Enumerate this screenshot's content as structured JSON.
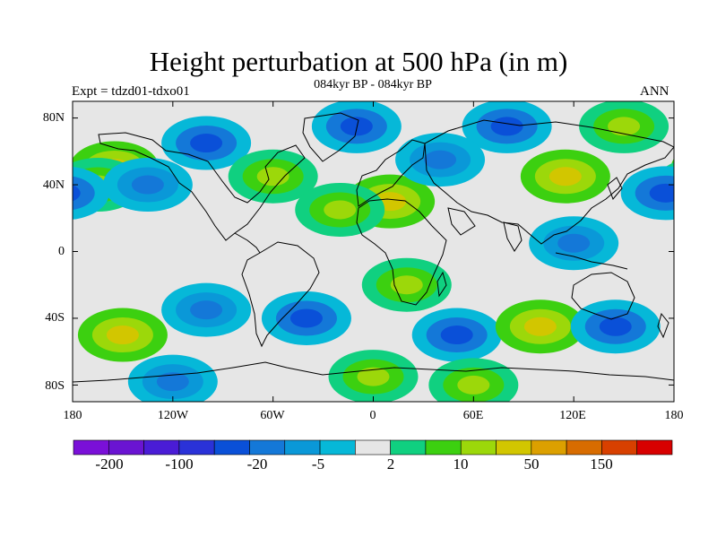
{
  "title": "Height perturbation at 500 hPa (in m)",
  "subtitle": "084kyr BP - 084kyr BP",
  "left_label": "Expt = tdzd01-tdxo01",
  "right_label": "ANN",
  "chart_data": {
    "type": "heatmap",
    "projection": "cylindrical-equidistant",
    "xlim": [
      -180,
      180
    ],
    "ylim": [
      -90,
      90
    ],
    "x_ticks": [
      "180",
      "120W",
      "60W",
      "0",
      "60E",
      "120E",
      "180"
    ],
    "y_ticks": [
      "80N",
      "40N",
      "0",
      "40S",
      "80S"
    ],
    "colorbar": {
      "orientation": "horizontal",
      "tick_labels": [
        "-200",
        "-100",
        "-20",
        "-5",
        "2",
        "10",
        "50",
        "150"
      ],
      "colors": [
        "#7a10d8",
        "#6a14d2",
        "#4a1cd6",
        "#2a32d8",
        "#0a50d8",
        "#1478d8",
        "#0a98d8",
        "#06b8d8",
        "#e6e6e6",
        "#10d080",
        "#3cd010",
        "#9cd80a",
        "#d2c600",
        "#dca000",
        "#d86c00",
        "#d84000",
        "#d80000"
      ]
    },
    "anomalies": [
      {
        "lon": -155,
        "lat": 50,
        "value": 50
      },
      {
        "lon": -165,
        "lat": 40,
        "value": 10
      },
      {
        "lon": -100,
        "lat": 65,
        "value": -20
      },
      {
        "lon": -60,
        "lat": 45,
        "value": 10
      },
      {
        "lon": -10,
        "lat": 75,
        "value": -20
      },
      {
        "lon": 10,
        "lat": 30,
        "value": 50
      },
      {
        "lon": -20,
        "lat": 25,
        "value": 10
      },
      {
        "lon": 80,
        "lat": 75,
        "value": -20
      },
      {
        "lon": 40,
        "lat": 55,
        "value": -5
      },
      {
        "lon": 115,
        "lat": 45,
        "value": 50
      },
      {
        "lon": 175,
        "lat": 35,
        "value": -20
      },
      {
        "lon": 150,
        "lat": 75,
        "value": 10
      },
      {
        "lon": 120,
        "lat": 5,
        "value": -5
      },
      {
        "lon": -135,
        "lat": 40,
        "value": -5
      },
      {
        "lon": -150,
        "lat": -50,
        "value": 50
      },
      {
        "lon": -100,
        "lat": -35,
        "value": -5
      },
      {
        "lon": -40,
        "lat": -40,
        "value": -20
      },
      {
        "lon": 20,
        "lat": -20,
        "value": 10
      },
      {
        "lon": 50,
        "lat": -50,
        "value": -20
      },
      {
        "lon": 100,
        "lat": -45,
        "value": 50
      },
      {
        "lon": 145,
        "lat": -45,
        "value": -20
      },
      {
        "lon": 0,
        "lat": -75,
        "value": 10
      },
      {
        "lon": -120,
        "lat": -78,
        "value": -5
      },
      {
        "lon": 60,
        "lat": -80,
        "value": 10
      }
    ]
  }
}
